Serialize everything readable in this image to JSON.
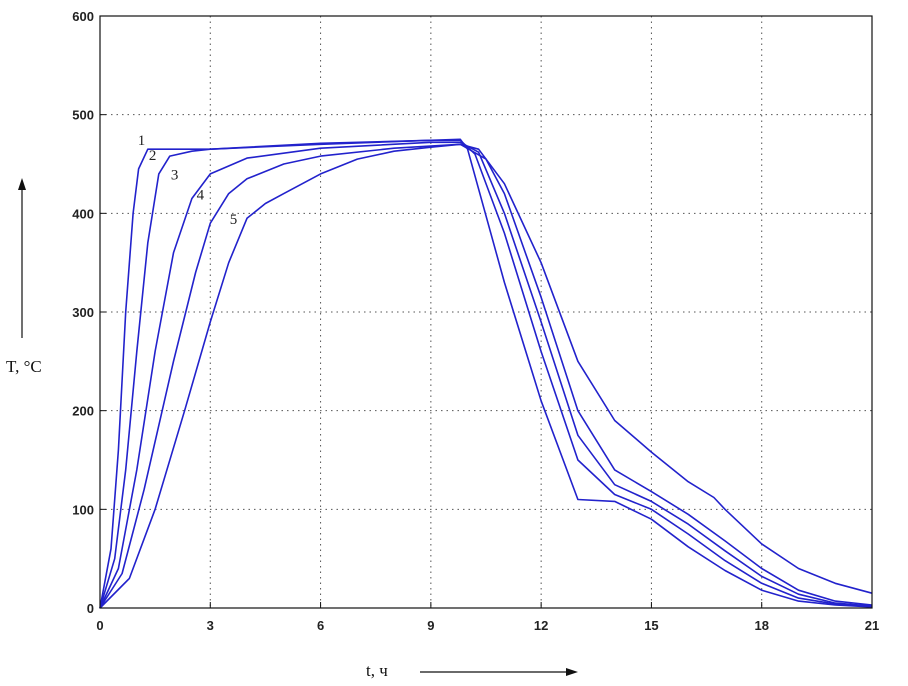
{
  "chart_data": {
    "type": "line",
    "title": "",
    "xlabel": "t, ч",
    "ylabel": "T, °C",
    "xlim": [
      0,
      21
    ],
    "ylim": [
      0,
      600
    ],
    "xticks": [
      0,
      3,
      6,
      9,
      12,
      15,
      18,
      21
    ],
    "yticks": [
      0,
      100,
      200,
      300,
      400,
      500,
      600
    ],
    "grid": true,
    "legend": "none",
    "line_color": "#2222cc",
    "series": [
      {
        "label": "1",
        "label_at": [
          1.3,
          465
        ],
        "points": [
          [
            0,
            0
          ],
          [
            0.3,
            60
          ],
          [
            0.5,
            160
          ],
          [
            0.7,
            300
          ],
          [
            0.9,
            400
          ],
          [
            1.05,
            445
          ],
          [
            1.3,
            465
          ],
          [
            3,
            465
          ],
          [
            6,
            470
          ],
          [
            9,
            474
          ],
          [
            9.8,
            475
          ],
          [
            10,
            465
          ],
          [
            11,
            330
          ],
          [
            12,
            210
          ],
          [
            13,
            110
          ],
          [
            14,
            108
          ],
          [
            15,
            90
          ],
          [
            16,
            62
          ],
          [
            17,
            38
          ],
          [
            18,
            18
          ],
          [
            19,
            7
          ],
          [
            20,
            3
          ],
          [
            21,
            1
          ]
        ]
      },
      {
        "label": "2",
        "label_at": [
          1.6,
          450
        ],
        "points": [
          [
            0,
            0
          ],
          [
            0.4,
            50
          ],
          [
            0.7,
            140
          ],
          [
            1.0,
            260
          ],
          [
            1.3,
            370
          ],
          [
            1.6,
            440
          ],
          [
            1.9,
            458
          ],
          [
            2.5,
            463
          ],
          [
            3,
            465
          ],
          [
            6,
            471
          ],
          [
            9,
            474
          ],
          [
            9.8,
            474
          ],
          [
            10.2,
            460
          ],
          [
            11,
            380
          ],
          [
            12,
            260
          ],
          [
            13,
            150
          ],
          [
            14,
            115
          ],
          [
            15,
            100
          ],
          [
            16,
            75
          ],
          [
            17,
            48
          ],
          [
            18,
            25
          ],
          [
            19,
            10
          ],
          [
            20,
            4
          ],
          [
            21,
            2
          ]
        ]
      },
      {
        "label": "3",
        "label_at": [
          2.2,
          430
        ],
        "points": [
          [
            0,
            0
          ],
          [
            0.5,
            40
          ],
          [
            1.0,
            140
          ],
          [
            1.5,
            260
          ],
          [
            2.0,
            360
          ],
          [
            2.5,
            415
          ],
          [
            3,
            440
          ],
          [
            4,
            456
          ],
          [
            6,
            466
          ],
          [
            9,
            472
          ],
          [
            9.8,
            472
          ],
          [
            10.3,
            462
          ],
          [
            11,
            400
          ],
          [
            12,
            290
          ],
          [
            13,
            175
          ],
          [
            14,
            125
          ],
          [
            15,
            108
          ],
          [
            16,
            85
          ],
          [
            17,
            58
          ],
          [
            18,
            32
          ],
          [
            19,
            14
          ],
          [
            20,
            5
          ],
          [
            21,
            2
          ]
        ]
      },
      {
        "label": "4",
        "label_at": [
          2.9,
          410
        ],
        "points": [
          [
            0,
            0
          ],
          [
            0.6,
            35
          ],
          [
            1.2,
            120
          ],
          [
            2.0,
            250
          ],
          [
            2.6,
            340
          ],
          [
            3.0,
            390
          ],
          [
            3.5,
            420
          ],
          [
            4,
            435
          ],
          [
            5,
            450
          ],
          [
            6,
            458
          ],
          [
            8,
            466
          ],
          [
            9.8,
            470
          ],
          [
            10.5,
            455
          ],
          [
            11,
            420
          ],
          [
            12,
            315
          ],
          [
            13,
            200
          ],
          [
            14,
            140
          ],
          [
            15,
            118
          ],
          [
            16,
            95
          ],
          [
            17,
            68
          ],
          [
            18,
            40
          ],
          [
            19,
            18
          ],
          [
            20,
            7
          ],
          [
            21,
            3
          ]
        ]
      },
      {
        "label": "5",
        "label_at": [
          3.8,
          385
        ],
        "points": [
          [
            0,
            0
          ],
          [
            0.8,
            30
          ],
          [
            1.5,
            100
          ],
          [
            2.3,
            200
          ],
          [
            3,
            290
          ],
          [
            3.5,
            350
          ],
          [
            4,
            395
          ],
          [
            4.5,
            410
          ],
          [
            5,
            420
          ],
          [
            6,
            440
          ],
          [
            7,
            455
          ],
          [
            8,
            463
          ],
          [
            9,
            467
          ],
          [
            9.8,
            470
          ],
          [
            10.3,
            465
          ],
          [
            11,
            430
          ],
          [
            12,
            350
          ],
          [
            13,
            250
          ],
          [
            14,
            190
          ],
          [
            15,
            158
          ],
          [
            16,
            128
          ],
          [
            16.7,
            112
          ],
          [
            17,
            100
          ],
          [
            18,
            65
          ],
          [
            19,
            40
          ],
          [
            20,
            25
          ],
          [
            21,
            15
          ]
        ]
      }
    ]
  }
}
